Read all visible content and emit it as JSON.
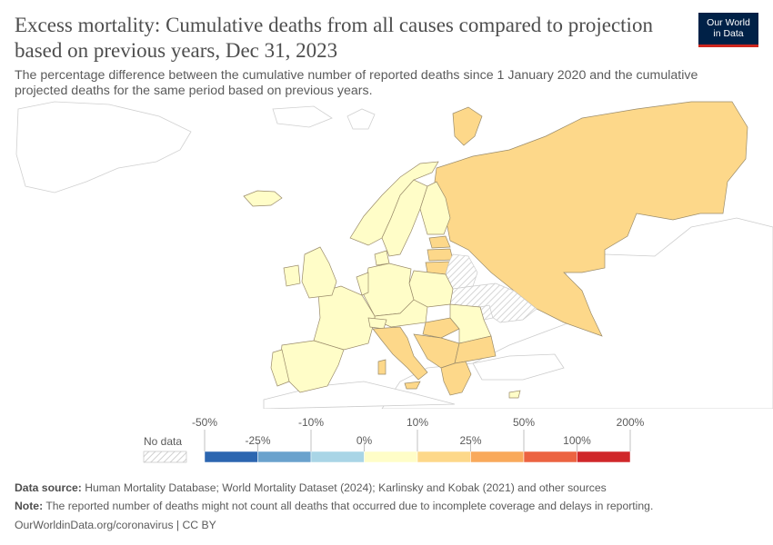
{
  "header": {
    "title": "Excess mortality: Cumulative deaths from all causes compared to projection based on previous years, Dec 31, 2023",
    "subtitle": "The percentage difference between the cumulative number of reported deaths since 1 January 2020 and the cumulative projected deaths for the same period based on previous years."
  },
  "logo": {
    "line1": "Our World",
    "line2": "in Data"
  },
  "colors": {
    "no_data": "#eeeeee",
    "bins": [
      "#2c66b0",
      "#6aa2cd",
      "#a9d5e6",
      "#fffdc8",
      "#fdd88a",
      "#f9a95b",
      "#ec6341",
      "#d0272a"
    ],
    "border_country": "#9a8b6a",
    "outside": "#ffffff",
    "outside_border": "#cfcfcf"
  },
  "legend": {
    "no_data_label": "No data",
    "top_labels": [
      "-50%",
      "-10%",
      "10%",
      "50%",
      "200%"
    ],
    "bottom_labels": [
      "-25%",
      "0%",
      "25%",
      "100%"
    ]
  },
  "map_data": {
    "metric": "Excess mortality (%)",
    "date": "Dec 31, 2023",
    "regions": [
      {
        "name": "Russia",
        "bin": "10% to 25%"
      },
      {
        "name": "Finland",
        "bin": "0% to 10%"
      },
      {
        "name": "Sweden",
        "bin": "0% to 10%"
      },
      {
        "name": "Norway",
        "bin": "0% to 10%"
      },
      {
        "name": "Iceland",
        "bin": "0% to 10%"
      },
      {
        "name": "Estonia",
        "bin": "10% to 25%"
      },
      {
        "name": "Latvia",
        "bin": "10% to 25%"
      },
      {
        "name": "Lithuania",
        "bin": "10% to 25%"
      },
      {
        "name": "Belarus",
        "bin": "No data"
      },
      {
        "name": "Ukraine",
        "bin": "No data"
      },
      {
        "name": "Poland",
        "bin": "0% to 10%"
      },
      {
        "name": "Germany",
        "bin": "0% to 10%"
      },
      {
        "name": "France",
        "bin": "0% to 10%"
      },
      {
        "name": "Spain",
        "bin": "0% to 10%"
      },
      {
        "name": "Portugal",
        "bin": "0% to 10%"
      },
      {
        "name": "United Kingdom",
        "bin": "0% to 10%"
      },
      {
        "name": "Ireland",
        "bin": "0% to 10%"
      },
      {
        "name": "Italy",
        "bin": "10% to 25%"
      },
      {
        "name": "Romania",
        "bin": "0% to 10%"
      },
      {
        "name": "Bulgaria",
        "bin": "10% to 25%"
      },
      {
        "name": "Serbia",
        "bin": "10% to 25%"
      },
      {
        "name": "Greece",
        "bin": "10% to 25%"
      },
      {
        "name": "Hungary",
        "bin": "10% to 25%"
      },
      {
        "name": "Moldova",
        "bin": "No data"
      }
    ]
  },
  "footer": {
    "source_label": "Data source:",
    "source_text": " Human Mortality Database; World Mortality Dataset (2024); Karlinsky and Kobak (2021) and other sources",
    "note_label": "Note:",
    "note_text": " The reported number of deaths might not count all deaths that occurred due to incomplete coverage and delays in reporting.",
    "url": "OurWorldinData.org/coronavirus | CC BY"
  }
}
